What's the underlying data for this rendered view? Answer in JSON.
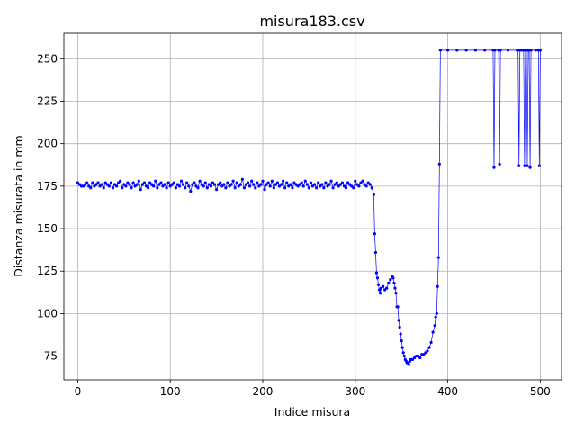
{
  "chart_data": {
    "type": "line",
    "title": "misura183.csv",
    "xlabel": "Indice misura",
    "ylabel": "Distanza misurata in mm",
    "xlim": [
      -15,
      523
    ],
    "ylim": [
      61,
      265
    ],
    "xticks": [
      0,
      100,
      200,
      300,
      400,
      500
    ],
    "yticks": [
      75,
      100,
      125,
      150,
      175,
      200,
      225,
      250
    ],
    "grid": true,
    "legend": "none",
    "color": "#0000ff",
    "markers": true,
    "series": [
      {
        "x": [
          0,
          2,
          4,
          6,
          8,
          10,
          12,
          14,
          16,
          18,
          20,
          22,
          24,
          26,
          28,
          30,
          32,
          34,
          36,
          38,
          40,
          42,
          44,
          46,
          48,
          50,
          52,
          54,
          56,
          58,
          60,
          62,
          64,
          66,
          68,
          70,
          72,
          74,
          76,
          78,
          80,
          82,
          84,
          86,
          88,
          90,
          92,
          94,
          96,
          98,
          100,
          102,
          104,
          106,
          108,
          110,
          112,
          114,
          116,
          118,
          120,
          122,
          124,
          126,
          128,
          130,
          132,
          134,
          136,
          138,
          140,
          142,
          144,
          146,
          148,
          150,
          152,
          154,
          156,
          158,
          160,
          162,
          164,
          166,
          168,
          170,
          172,
          174,
          176,
          178,
          180,
          182,
          184,
          186,
          188,
          190,
          192,
          194,
          196,
          198,
          200,
          202,
          204,
          206,
          208,
          210,
          212,
          214,
          216,
          218,
          220,
          222,
          224,
          226,
          228,
          230,
          232,
          234,
          236,
          238,
          240,
          242,
          244,
          246,
          248,
          250,
          252,
          254,
          256,
          258,
          260,
          262,
          264,
          266,
          268,
          270,
          272,
          274,
          276,
          278,
          280,
          282,
          284,
          286,
          288,
          290,
          292,
          294,
          296,
          298,
          300,
          302,
          304,
          306,
          308,
          310,
          312,
          314,
          316,
          318,
          320,
          321,
          322,
          323,
          324,
          325,
          326,
          327,
          328,
          330,
          332,
          334,
          336,
          338,
          340,
          341,
          342,
          343,
          344,
          345,
          346,
          347,
          348,
          349,
          350,
          351,
          352,
          353,
          354,
          355,
          356,
          357,
          358,
          359,
          360,
          362,
          364,
          366,
          368,
          370,
          372,
          374,
          376,
          378,
          380,
          382,
          384,
          386,
          387,
          388,
          389,
          390,
          391,
          392,
          400,
          410,
          420,
          430,
          440,
          449,
          450,
          451,
          455,
          456,
          457,
          465,
          475,
          476,
          477,
          478,
          480,
          482,
          483,
          484,
          485,
          486,
          487,
          488,
          489,
          490,
          495,
          498,
          499,
          500
        ],
        "y": [
          177,
          176,
          175,
          175,
          176,
          177,
          175,
          174,
          177,
          175,
          176,
          177,
          175,
          176,
          174,
          177,
          176,
          175,
          177,
          174,
          176,
          175,
          177,
          178,
          174,
          176,
          175,
          177,
          176,
          174,
          177,
          175,
          176,
          178,
          173,
          176,
          177,
          175,
          174,
          177,
          176,
          175,
          178,
          174,
          176,
          177,
          175,
          176,
          174,
          177,
          175,
          176,
          177,
          174,
          176,
          175,
          178,
          176,
          174,
          177,
          175,
          172,
          176,
          177,
          175,
          174,
          178,
          176,
          175,
          177,
          174,
          176,
          175,
          177,
          176,
          173,
          176,
          177,
          175,
          176,
          174,
          177,
          175,
          176,
          178,
          174,
          177,
          175,
          176,
          179,
          174,
          176,
          177,
          175,
          178,
          176,
          174,
          177,
          175,
          176,
          178,
          173,
          176,
          177,
          175,
          178,
          174,
          176,
          177,
          175,
          176,
          178,
          174,
          177,
          175,
          176,
          174,
          177,
          176,
          175,
          176,
          177,
          175,
          178,
          176,
          174,
          177,
          175,
          176,
          174,
          177,
          175,
          176,
          174,
          177,
          175,
          176,
          178,
          174,
          176,
          177,
          175,
          176,
          177,
          175,
          174,
          177,
          176,
          175,
          174,
          178,
          176,
          175,
          177,
          178,
          176,
          175,
          177,
          176,
          174,
          170,
          147,
          136,
          124,
          121,
          117,
          114,
          112,
          115,
          116,
          114,
          115,
          118,
          120,
          122,
          121,
          118,
          115,
          112,
          104,
          104,
          96,
          92,
          88,
          84,
          80,
          77,
          75,
          73,
          72,
          71,
          71,
          70,
          72,
          73,
          73,
          74,
          75,
          75,
          74,
          76,
          76,
          77,
          78,
          80,
          83,
          89,
          93,
          98,
          100,
          116,
          133,
          188,
          255,
          255,
          255,
          255,
          255,
          255,
          255,
          186,
          255,
          255,
          188,
          255,
          255,
          255,
          255,
          187,
          255,
          255,
          255,
          187,
          255,
          255,
          187,
          255,
          255,
          186,
          255,
          255,
          255,
          187,
          255
        ]
      }
    ]
  }
}
